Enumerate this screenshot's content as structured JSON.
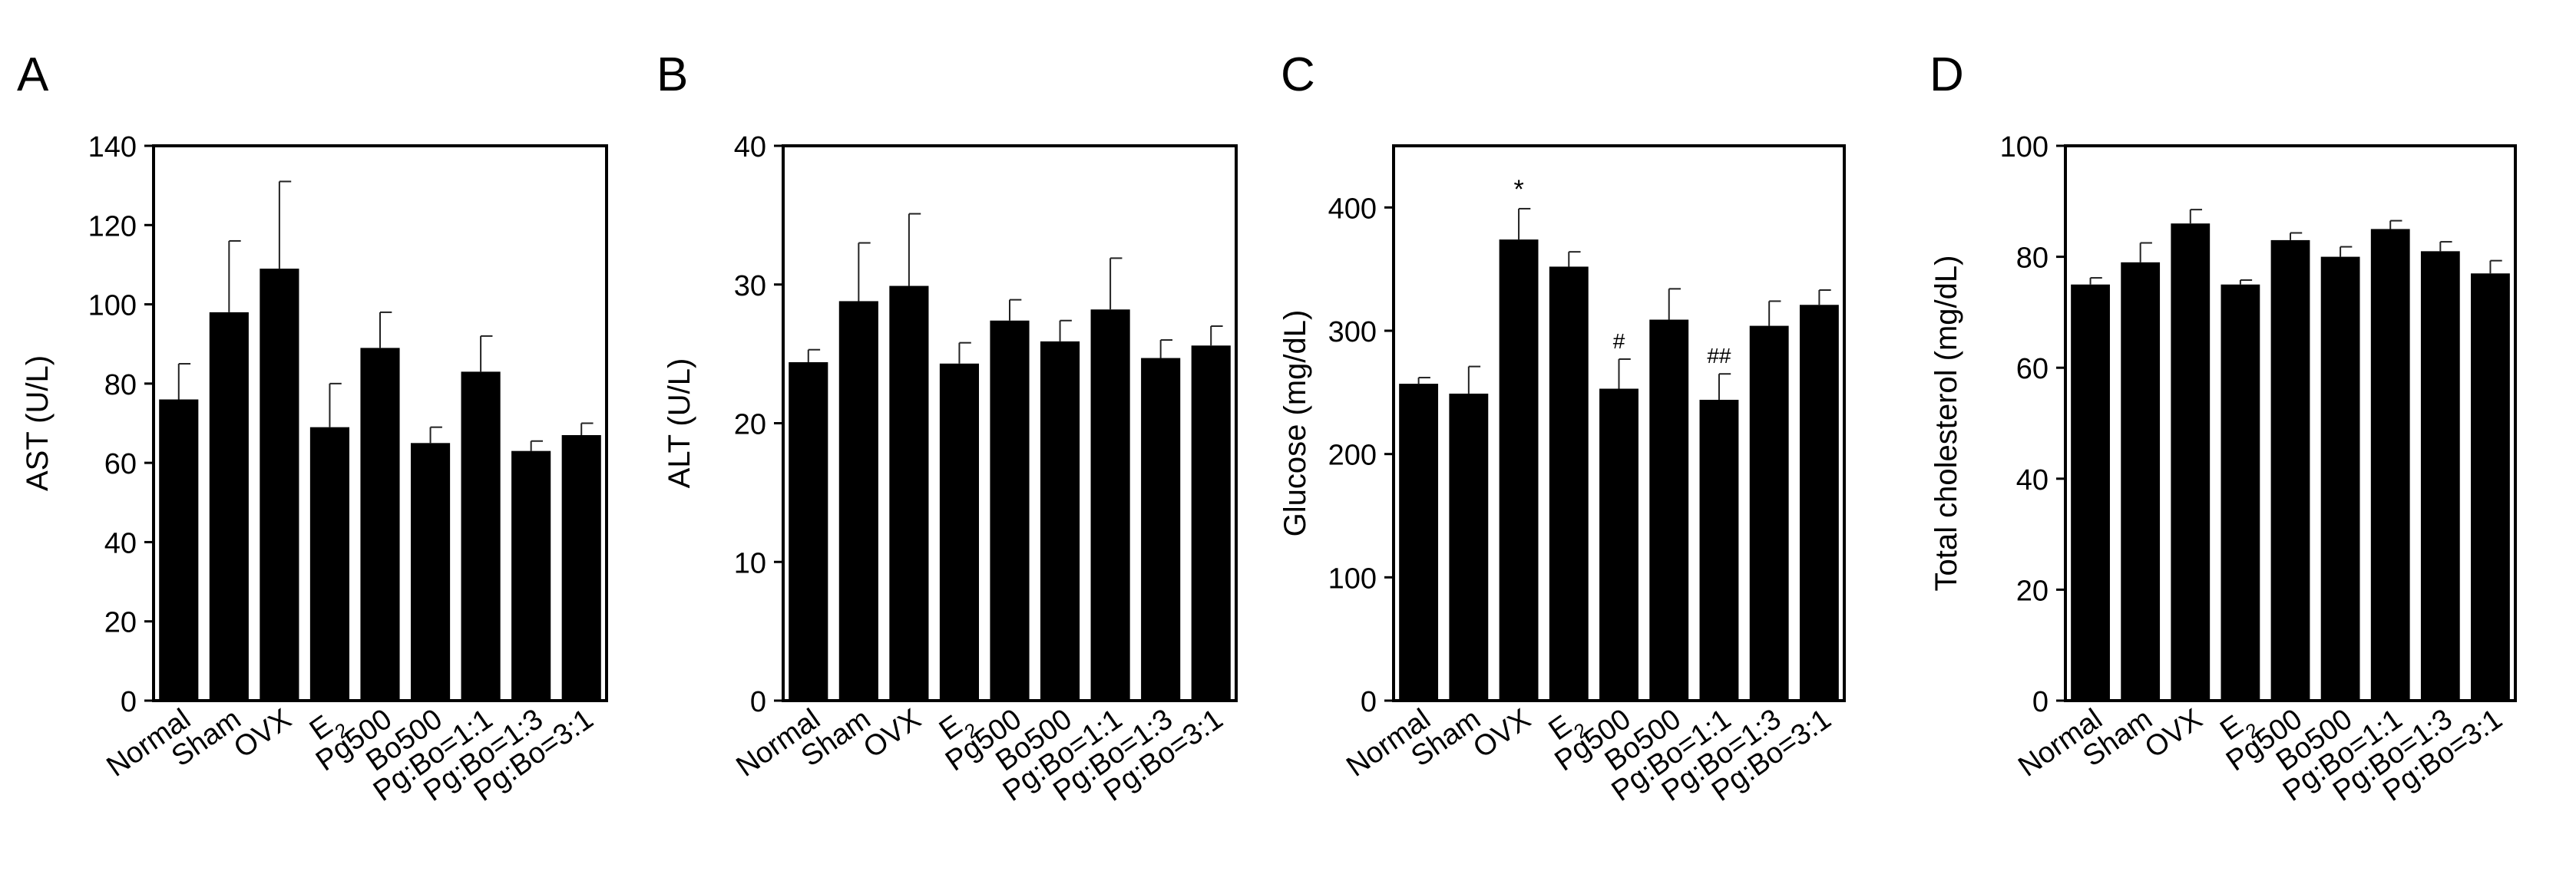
{
  "categories": [
    "Normal",
    "Sham",
    "OVX",
    "E",
    "Pg500",
    "Bo500",
    "Pg:Bo=1:1",
    "Pg:Bo=1:3",
    "Pg:Bo=3:1"
  ],
  "e2_subscript": "2",
  "chart_data": [
    {
      "type": "bar",
      "panel": "A",
      "ylabel": "AST (U/L)",
      "ylim": [
        0,
        140
      ],
      "yticks": [
        0,
        20,
        40,
        60,
        80,
        100,
        120,
        140
      ],
      "values": [
        76,
        98,
        109,
        69,
        89,
        65,
        83,
        63,
        67
      ],
      "errors": [
        9,
        18,
        22,
        11,
        9,
        4,
        9,
        2.5,
        3
      ],
      "annotations": [
        "",
        "",
        "",
        "",
        "",
        "",
        "",
        "",
        ""
      ]
    },
    {
      "type": "bar",
      "panel": "B",
      "ylabel": "ALT (U/L)",
      "ylim": [
        0,
        40
      ],
      "yticks": [
        0,
        10,
        20,
        30,
        40
      ],
      "values": [
        24.4,
        28.8,
        29.9,
        24.3,
        27.4,
        25.9,
        28.2,
        24.7,
        25.6
      ],
      "errors": [
        0.9,
        4.2,
        5.2,
        1.5,
        1.5,
        1.5,
        3.7,
        1.3,
        1.4
      ],
      "annotations": [
        "",
        "",
        "",
        "",
        "",
        "",
        "",
        "",
        ""
      ]
    },
    {
      "type": "bar",
      "panel": "C",
      "ylabel": "Glucose (mg/dL)",
      "ylim": [
        0,
        450
      ],
      "yticks": [
        0,
        100,
        200,
        300,
        400
      ],
      "values": [
        257,
        249,
        374,
        352,
        253,
        309,
        244,
        304,
        321
      ],
      "errors": [
        5,
        22,
        25,
        12,
        24,
        25,
        21,
        20,
        12
      ],
      "annotations": [
        "",
        "",
        "*",
        "",
        "#",
        "",
        "##",
        "",
        ""
      ]
    },
    {
      "type": "bar",
      "panel": "D",
      "ylabel": "Total cholesterol (mg/dL)",
      "ylim": [
        0,
        100
      ],
      "yticks": [
        0,
        20,
        40,
        60,
        80,
        100
      ],
      "values": [
        75,
        79,
        86,
        75,
        83,
        80,
        85,
        81,
        77
      ],
      "errors": [
        1.2,
        3.5,
        2.5,
        0.8,
        1.3,
        1.8,
        1.5,
        1.7,
        2.3
      ],
      "annotations": [
        "",
        "",
        "",
        "",
        "",
        "",
        "",
        "",
        ""
      ]
    }
  ]
}
